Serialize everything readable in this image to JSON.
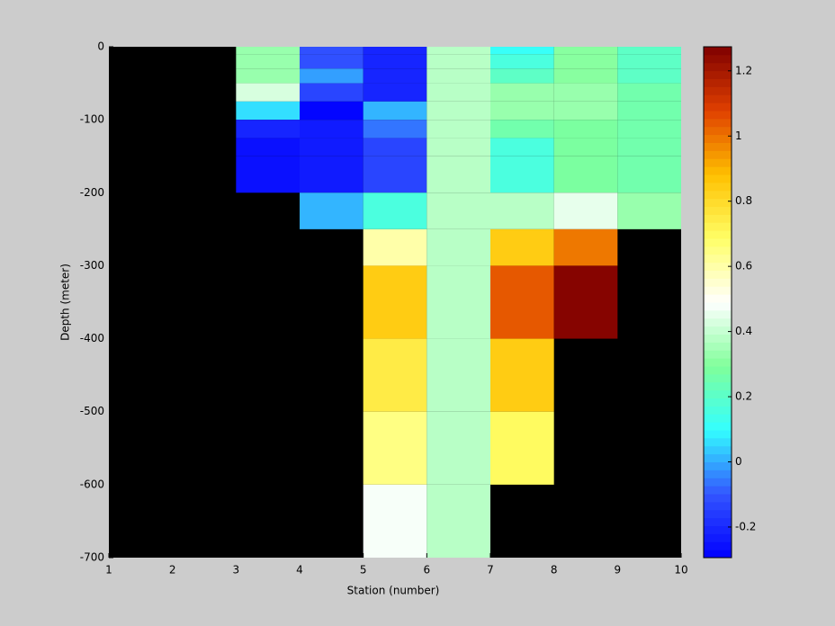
{
  "chart_data": {
    "type": "heatmap",
    "xlabel": "Station (number)",
    "ylabel": "Depth (meter)",
    "x": [
      1,
      2,
      3,
      4,
      5,
      6,
      7,
      8,
      9,
      10
    ],
    "y": [
      0,
      -10,
      -30,
      -50,
      -75,
      -100,
      -125,
      -150,
      -200,
      -250,
      -300,
      -400,
      -500,
      -600,
      -700
    ],
    "z": [
      [
        null,
        null,
        0.33,
        -0.1,
        -0.22,
        0.38,
        0.12,
        0.3,
        0.2
      ],
      [
        null,
        null,
        0.33,
        -0.1,
        -0.2,
        0.38,
        0.15,
        0.3,
        0.2
      ],
      [
        null,
        null,
        0.33,
        -0.02,
        -0.22,
        0.38,
        0.22,
        0.3,
        0.2
      ],
      [
        null,
        null,
        0.42,
        -0.14,
        -0.22,
        0.38,
        0.33,
        0.32,
        0.25
      ],
      [
        null,
        null,
        0.07,
        -0.28,
        0.02,
        0.38,
        0.33,
        0.32,
        0.25
      ],
      [
        null,
        null,
        -0.22,
        -0.24,
        -0.05,
        0.38,
        0.25,
        0.28,
        0.25
      ],
      [
        null,
        null,
        -0.26,
        -0.24,
        -0.13,
        0.38,
        0.15,
        0.28,
        0.25
      ],
      [
        null,
        null,
        -0.26,
        -0.24,
        -0.14,
        0.38,
        0.15,
        0.28,
        0.25
      ],
      [
        null,
        null,
        null,
        0.02,
        0.15,
        0.38,
        0.38,
        0.45,
        0.33
      ],
      [
        null,
        null,
        null,
        null,
        0.6,
        0.38,
        0.85,
        1.0,
        null
      ],
      [
        null,
        null,
        null,
        null,
        0.85,
        0.38,
        1.05,
        1.27,
        null
      ],
      [
        null,
        null,
        null,
        null,
        0.75,
        0.38,
        0.85,
        null,
        null
      ],
      [
        null,
        null,
        null,
        null,
        0.65,
        0.38,
        0.7,
        null,
        null
      ],
      [
        null,
        null,
        null,
        null,
        0.48,
        0.38,
        null,
        null,
        null
      ]
    ],
    "xlim": [
      1,
      10
    ],
    "ylim": [
      -700,
      0
    ],
    "xticks": [
      1,
      2,
      3,
      4,
      5,
      6,
      7,
      8,
      9,
      10
    ],
    "yticks": [
      0,
      -100,
      -200,
      -300,
      -400,
      -500,
      -600,
      -700
    ],
    "clim": [
      -0.294,
      1.274
    ],
    "cticks": [
      -0.2,
      0,
      0.2,
      0.4,
      0.6,
      0.8,
      1,
      1.2
    ],
    "colormap": [
      "#0000ff",
      "#3355ff",
      "#33ffff",
      "#80ff9a",
      "#ffffff",
      "#ffff66",
      "#ffc000",
      "#e04000",
      "#800000"
    ],
    "background": "#000000"
  }
}
